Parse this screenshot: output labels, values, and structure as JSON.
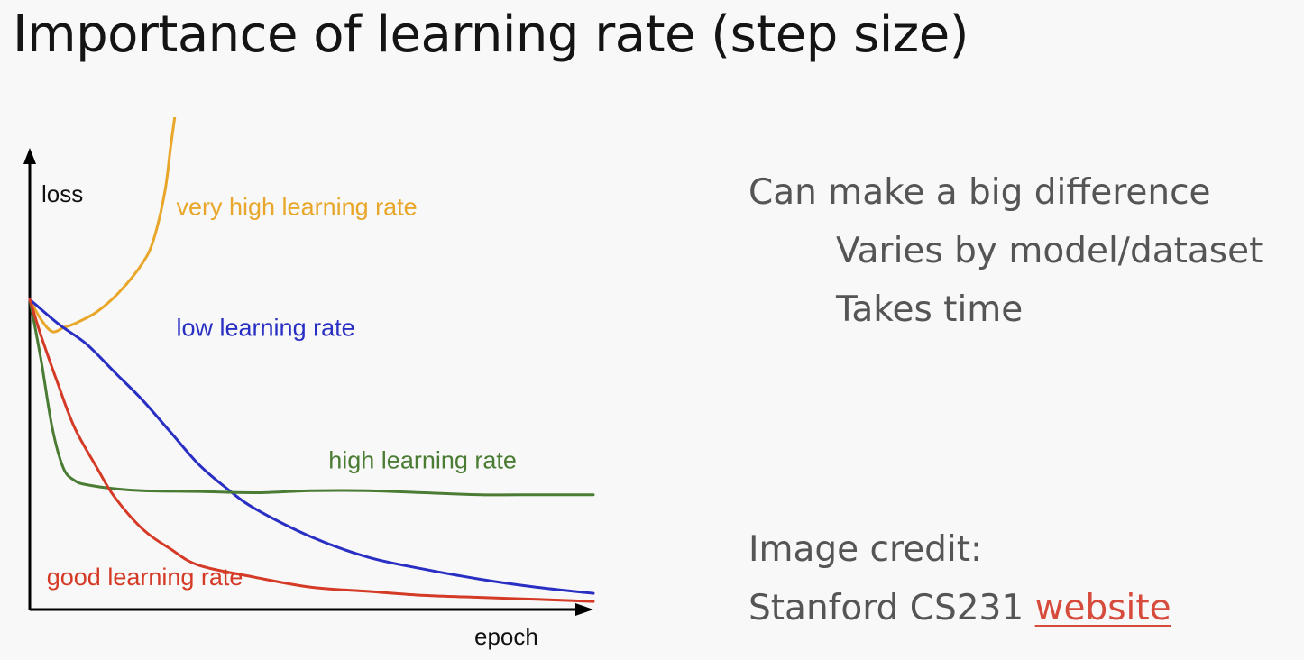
{
  "title": "Importance of learning rate (step size)",
  "bullets": {
    "main": "Can make a big difference",
    "subs": [
      "Varies by model/dataset",
      "Takes time"
    ]
  },
  "credit": {
    "label": "Image credit:",
    "source": "Stanford CS231",
    "link_text": "website"
  },
  "colors": {
    "very_high": "#e8a72a",
    "low": "#2a2fc4",
    "high": "#4b7c34",
    "good": "#d43a26",
    "axis": "#000000"
  },
  "chart_data": {
    "type": "line",
    "title": "",
    "xlabel": "epoch",
    "ylabel": "loss",
    "xlim": [
      0,
      100
    ],
    "ylim": [
      0,
      120
    ],
    "grid": false,
    "legend": "inline labels",
    "series": [
      {
        "name": "very high learning rate",
        "color": "#e8a72a",
        "points": [
          [
            0,
            77
          ],
          [
            2,
            72
          ],
          [
            4,
            69
          ],
          [
            6,
            70
          ],
          [
            8,
            71
          ],
          [
            12,
            74
          ],
          [
            16,
            79
          ],
          [
            20,
            86
          ],
          [
            22,
            92
          ],
          [
            24,
            104
          ],
          [
            25,
            115
          ],
          [
            26,
            125
          ]
        ]
      },
      {
        "name": "low learning rate",
        "color": "#2a2fc4",
        "points": [
          [
            0,
            77
          ],
          [
            5,
            71
          ],
          [
            10,
            66
          ],
          [
            15,
            59
          ],
          [
            20,
            52
          ],
          [
            25,
            44
          ],
          [
            30,
            36
          ],
          [
            35,
            30
          ],
          [
            40,
            25
          ],
          [
            50,
            18
          ],
          [
            60,
            13
          ],
          [
            70,
            10
          ],
          [
            80,
            7.5
          ],
          [
            90,
            5.5
          ],
          [
            100,
            4
          ]
        ]
      },
      {
        "name": "high learning rate",
        "color": "#4b7c34",
        "points": [
          [
            0,
            77
          ],
          [
            2,
            62
          ],
          [
            4,
            45
          ],
          [
            6,
            35
          ],
          [
            8,
            32
          ],
          [
            10,
            31
          ],
          [
            15,
            30
          ],
          [
            20,
            29.5
          ],
          [
            30,
            29.3
          ],
          [
            40,
            29
          ],
          [
            50,
            29.5
          ],
          [
            60,
            29.5
          ],
          [
            70,
            29
          ],
          [
            80,
            28.5
          ],
          [
            90,
            28.5
          ],
          [
            100,
            28.5
          ]
        ]
      },
      {
        "name": "good learning rate",
        "color": "#d43a26",
        "points": [
          [
            0,
            77
          ],
          [
            2,
            68
          ],
          [
            5,
            56
          ],
          [
            8,
            45
          ],
          [
            12,
            35
          ],
          [
            15,
            28
          ],
          [
            20,
            20
          ],
          [
            25,
            15
          ],
          [
            30,
            11
          ],
          [
            40,
            8
          ],
          [
            50,
            5.5
          ],
          [
            60,
            4.5
          ],
          [
            70,
            3.5
          ],
          [
            80,
            3
          ],
          [
            90,
            2.5
          ],
          [
            100,
            2
          ]
        ]
      }
    ],
    "annotations": [
      {
        "text": "very high learning rate",
        "series": "very high learning rate",
        "x": 26,
        "y": 98
      },
      {
        "text": "low learning rate",
        "series": "low learning rate",
        "x": 26,
        "y": 68
      },
      {
        "text": "high learning rate",
        "series": "high learning rate",
        "x": 53,
        "y": 35
      },
      {
        "text": "good learning rate",
        "series": "good learning rate",
        "x": 3,
        "y": 6
      }
    ]
  }
}
